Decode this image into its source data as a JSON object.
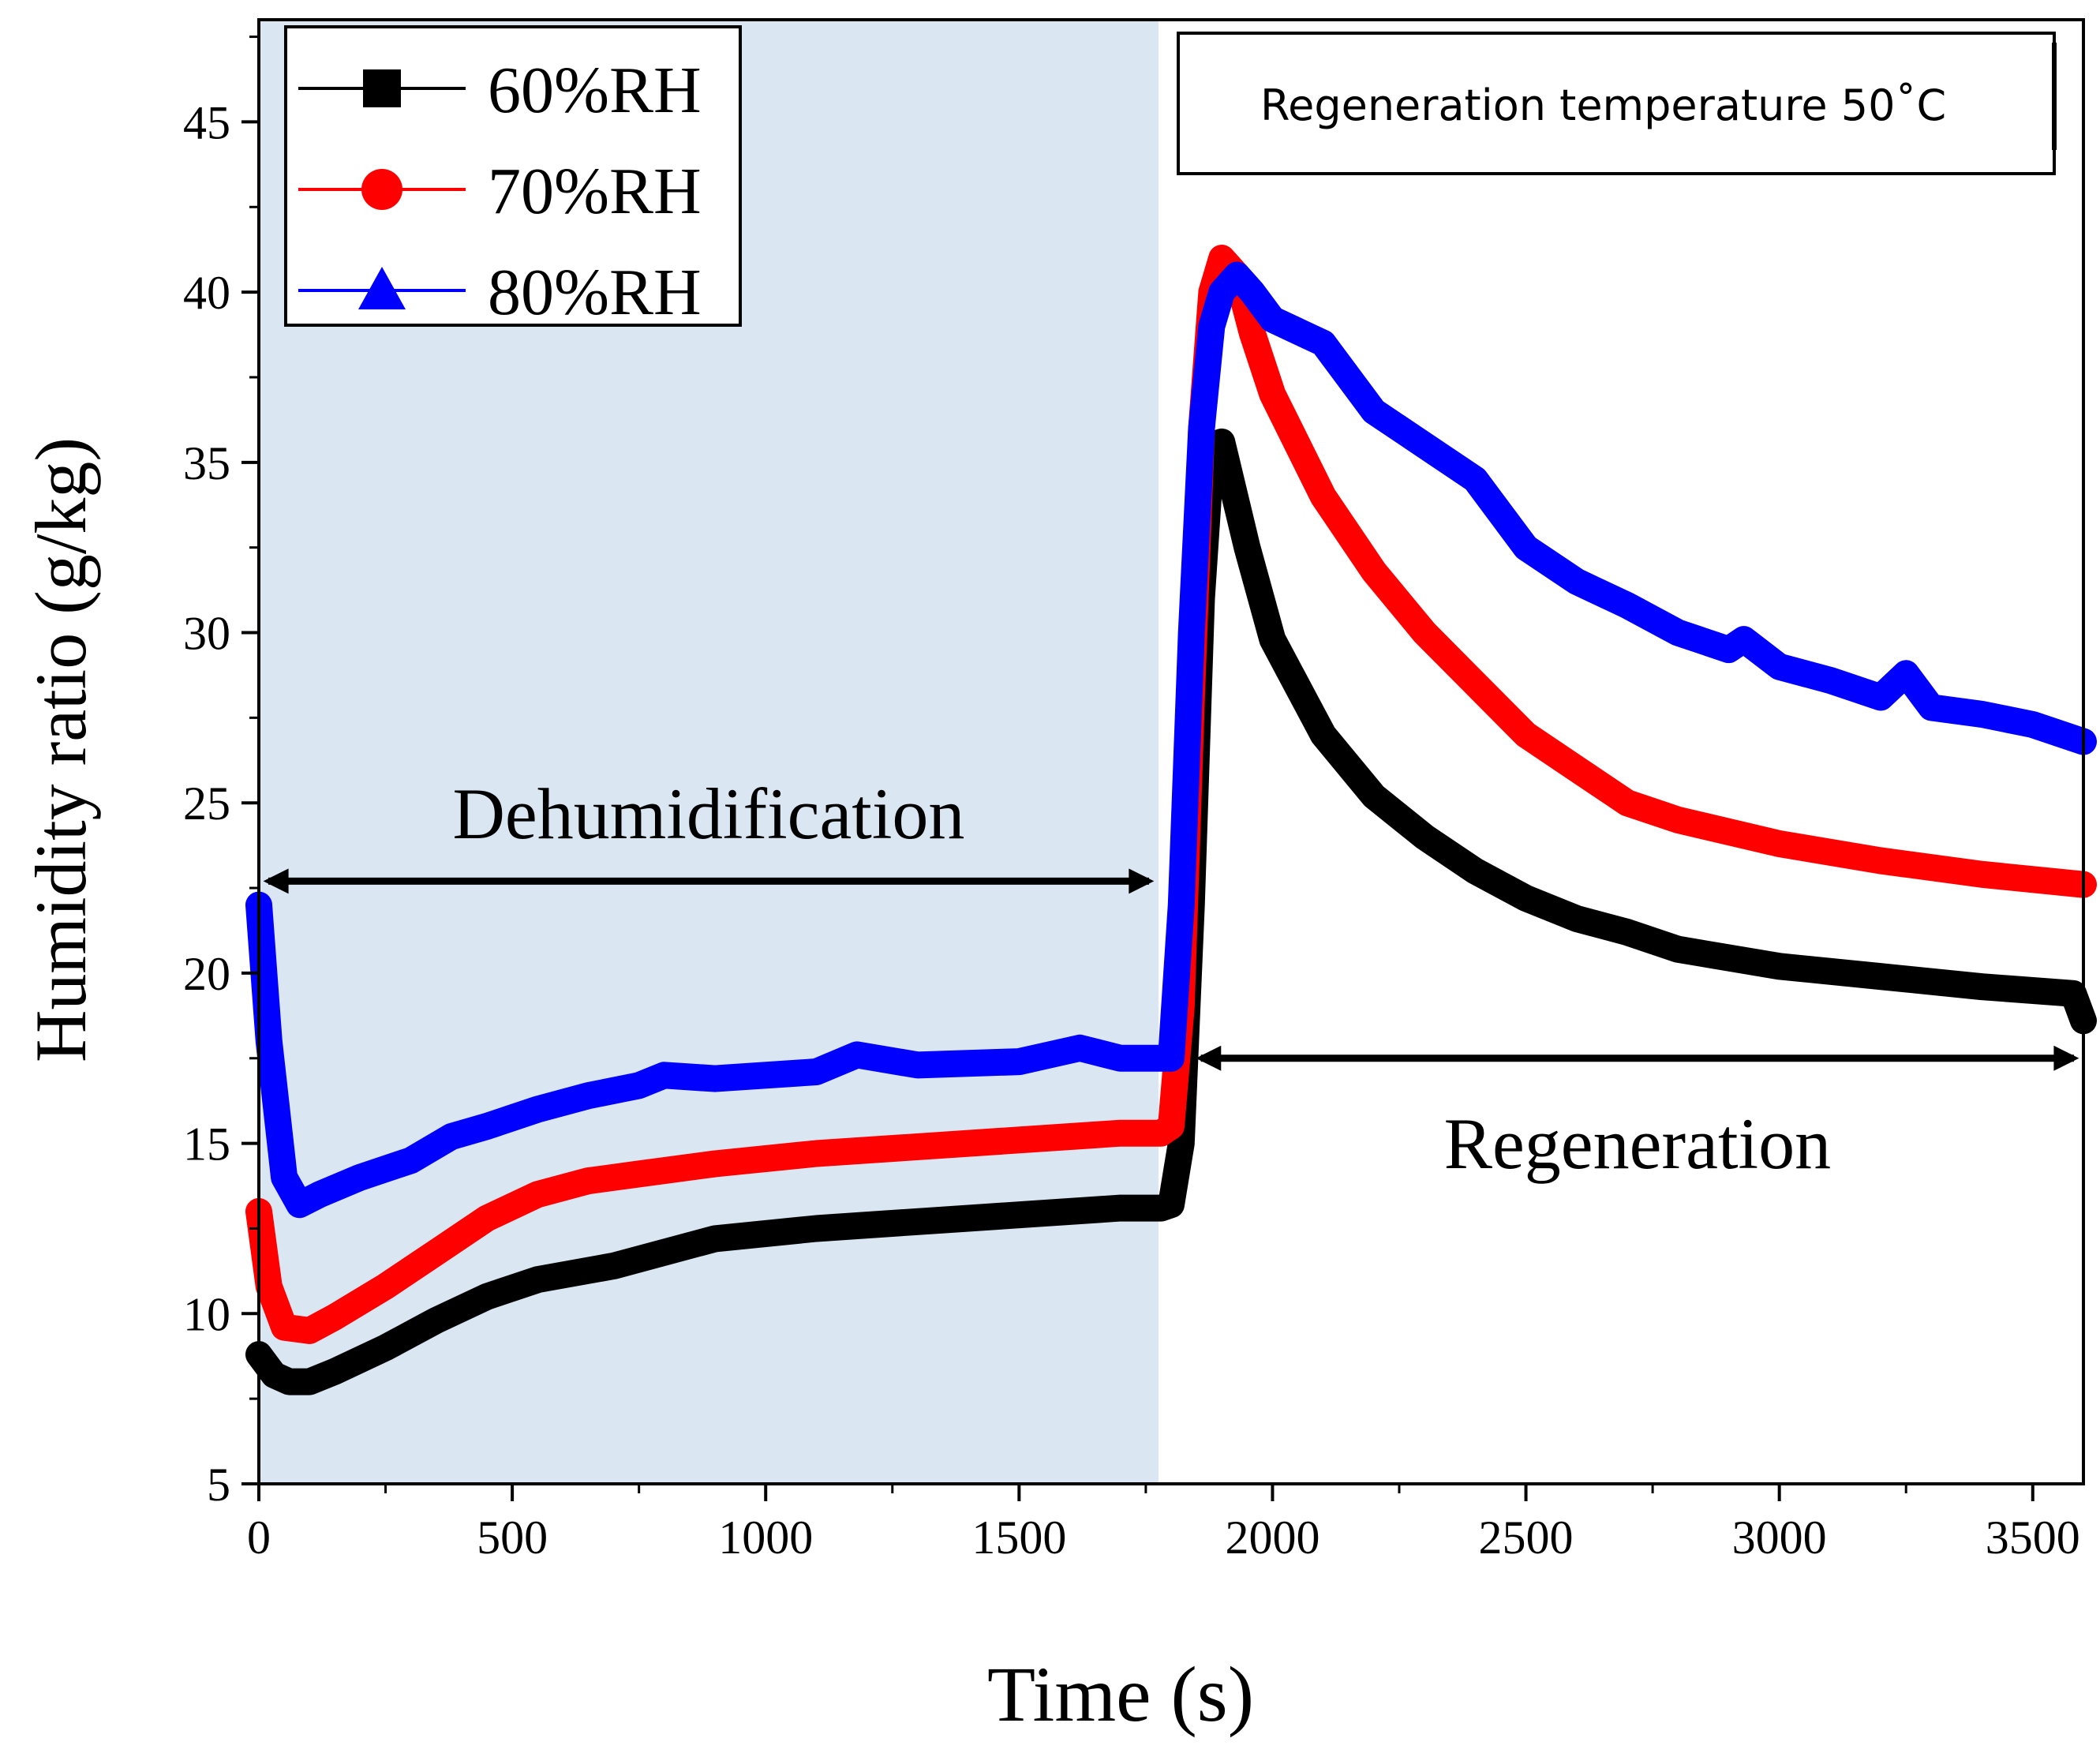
{
  "chart_data": {
    "type": "line",
    "xlabel": "Time (s)",
    "ylabel": "Humidity ratio (g/kg)",
    "xlim": [
      0,
      3600
    ],
    "ylim": [
      5,
      48
    ],
    "xticks": [
      0,
      500,
      1000,
      1500,
      2000,
      2500,
      3000,
      3500
    ],
    "yticks": [
      5,
      10,
      15,
      20,
      25,
      30,
      35,
      40,
      45
    ],
    "grid": false,
    "legend_position": "top-left",
    "shaded_region": {
      "x": [
        0,
        1775
      ],
      "color": "#dae6f1"
    },
    "annotation_box": "Regeneration temperature 50˚C",
    "phase_labels": [
      {
        "text": "Dehumidification",
        "arrow_from": 0,
        "arrow_to": 1775,
        "arrow_y": 22.7
      },
      {
        "text": "Regeneration",
        "arrow_from": 1840,
        "arrow_to": 3600,
        "arrow_y": 17.5
      }
    ],
    "series": [
      {
        "name": "60%RH",
        "color": "#000000",
        "marker": "square",
        "x": [
          0,
          30,
          60,
          100,
          150,
          250,
          350,
          450,
          550,
          700,
          900,
          1100,
          1300,
          1500,
          1700,
          1780,
          1800,
          1820,
          1840,
          1860,
          1880,
          1900,
          1950,
          2000,
          2100,
          2200,
          2300,
          2400,
          2500,
          2600,
          2700,
          2800,
          3000,
          3200,
          3400,
          3580,
          3600
        ],
        "values": [
          8.8,
          8.2,
          8.0,
          8.0,
          8.3,
          9.0,
          9.8,
          10.5,
          11.0,
          11.4,
          12.2,
          12.5,
          12.7,
          12.9,
          13.1,
          13.1,
          13.2,
          15.0,
          22.0,
          31.0,
          35.5,
          35.6,
          32.5,
          29.8,
          27.0,
          25.2,
          24.0,
          23.0,
          22.2,
          21.6,
          21.2,
          20.7,
          20.2,
          19.9,
          19.6,
          19.4,
          18.6
        ]
      },
      {
        "name": "70%RH",
        "color": "#ff0000",
        "marker": "circle",
        "x": [
          0,
          20,
          50,
          100,
          150,
          250,
          350,
          450,
          550,
          650,
          750,
          900,
          1100,
          1300,
          1500,
          1700,
          1780,
          1800,
          1820,
          1840,
          1860,
          1880,
          1900,
          1930,
          1960,
          2000,
          2100,
          2200,
          2300,
          2400,
          2500,
          2600,
          2700,
          2800,
          3000,
          3200,
          3400,
          3600
        ],
        "values": [
          13.0,
          10.8,
          9.6,
          9.5,
          9.9,
          10.8,
          11.8,
          12.8,
          13.5,
          13.9,
          14.1,
          14.4,
          14.7,
          14.9,
          15.1,
          15.3,
          15.3,
          15.5,
          19.0,
          28.0,
          36.0,
          40.0,
          41.0,
          40.5,
          38.8,
          37.0,
          34.0,
          31.8,
          30.0,
          28.5,
          27.0,
          26.0,
          25.0,
          24.5,
          23.8,
          23.3,
          22.9,
          22.6
        ]
      },
      {
        "name": "80%RH",
        "color": "#0000ff",
        "marker": "triangle",
        "x": [
          0,
          20,
          50,
          80,
          120,
          200,
          300,
          380,
          450,
          550,
          650,
          750,
          800,
          900,
          1100,
          1180,
          1300,
          1500,
          1620,
          1700,
          1780,
          1800,
          1820,
          1840,
          1860,
          1880,
          1900,
          1930,
          1960,
          2000,
          2100,
          2200,
          2300,
          2400,
          2450,
          2500,
          2600,
          2700,
          2800,
          2900,
          2930,
          3000,
          3100,
          3200,
          3250,
          3300,
          3400,
          3500,
          3600
        ],
        "values": [
          22.0,
          18.0,
          14.0,
          13.2,
          13.5,
          14.0,
          14.5,
          15.2,
          15.5,
          16.0,
          16.4,
          16.7,
          17.0,
          16.9,
          17.1,
          17.6,
          17.3,
          17.4,
          17.8,
          17.5,
          17.5,
          17.5,
          22.0,
          30.0,
          36.0,
          39.0,
          40.0,
          40.5,
          40.0,
          39.2,
          38.5,
          36.5,
          35.5,
          34.5,
          33.5,
          32.5,
          31.5,
          30.8,
          30.0,
          29.5,
          29.8,
          29.0,
          28.6,
          28.1,
          28.8,
          27.8,
          27.6,
          27.3,
          26.8
        ]
      }
    ]
  }
}
